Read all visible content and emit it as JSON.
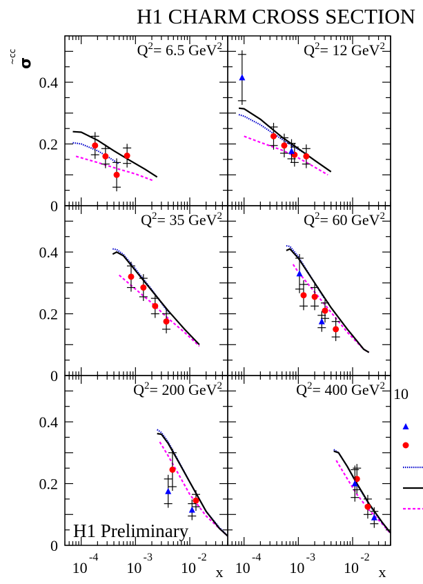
{
  "chart_data": {
    "type": "scatter",
    "title": "H1 CHARM CROSS SECTION",
    "ylabel": "σ̃ cc̄",
    "xlabel": "x",
    "xscale": "log",
    "xlim": [
      5e-05,
      0.05
    ],
    "ylim": [
      0,
      0.55
    ],
    "y_ticks": [
      "0",
      "0.2",
      "0.4"
    ],
    "x_ticks": [
      {
        "base": "10",
        "exp": "-4"
      },
      {
        "base": "10",
        "exp": "-3"
      },
      {
        "base": "10",
        "exp": "-2"
      }
    ],
    "annotation": "H1 Preliminary",
    "legend": {
      "placement": "right",
      "partial_label": "10",
      "entries": [
        {
          "name": "series-a",
          "marker": "triangle",
          "color": "#0000ff",
          "label": ""
        },
        {
          "name": "series-b",
          "marker": "circle",
          "color": "#ff0000",
          "label": ""
        },
        {
          "name": "model-dotted",
          "style": "dotted",
          "color": "#0000cc",
          "label": ""
        },
        {
          "name": "model-solid",
          "style": "solid",
          "color": "#000000",
          "label": ""
        },
        {
          "name": "model-dashed",
          "style": "dashed",
          "color": "#ff00ff",
          "label": ""
        }
      ]
    },
    "panels": [
      {
        "label": "Q",
        "q2": "6.5",
        "circles": [
          {
            "x": 0.00018,
            "y": 0.195,
            "err": 0.03
          },
          {
            "x": 0.00028,
            "y": 0.16,
            "err": 0.025
          },
          {
            "x": 0.00045,
            "y": 0.1,
            "err": 0.04
          },
          {
            "x": 0.0007,
            "y": 0.162,
            "err": 0.025
          }
        ],
        "triangles": [],
        "curves": {
          "solid": [
            [
              7e-05,
              0.24
            ],
            [
              0.0001,
              0.238
            ],
            [
              0.0002,
              0.212
            ],
            [
              0.0004,
              0.178
            ],
            [
              0.0008,
              0.146
            ],
            [
              0.0015,
              0.118
            ],
            [
              0.0025,
              0.093
            ]
          ],
          "dotted": [
            [
              7e-05,
              0.204
            ],
            [
              0.0001,
              0.2
            ],
            [
              0.0002,
              0.178
            ],
            [
              0.0003,
              0.16
            ],
            [
              0.0005,
              0.135
            ]
          ],
          "dashed": [
            [
              8e-05,
              0.16
            ],
            [
              0.0002,
              0.14
            ],
            [
              0.0005,
              0.118
            ],
            [
              0.001,
              0.103
            ],
            [
              0.0022,
              0.08
            ]
          ]
        }
      },
      {
        "label": "Q",
        "q2": "12",
        "circles": [
          {
            "x": 0.00035,
            "y": 0.225,
            "err": 0.03
          },
          {
            "x": 0.00055,
            "y": 0.195,
            "err": 0.025
          },
          {
            "x": 0.00085,
            "y": 0.165,
            "err": 0.025
          },
          {
            "x": 0.0014,
            "y": 0.16,
            "err": 0.025
          }
        ],
        "triangles": [
          {
            "x": 9.2e-05,
            "y": 0.415,
            "err": 0.075
          },
          {
            "x": 0.00075,
            "y": 0.177,
            "err": 0.025
          }
        ],
        "curves": {
          "solid": [
            [
              8e-05,
              0.316
            ],
            [
              0.0001,
              0.314
            ],
            [
              0.0002,
              0.28
            ],
            [
              0.0005,
              0.222
            ],
            [
              0.001,
              0.185
            ],
            [
              0.002,
              0.147
            ],
            [
              0.004,
              0.11
            ]
          ],
          "dotted": [
            [
              8e-05,
              0.295
            ],
            [
              0.0001,
              0.29
            ],
            [
              0.0002,
              0.262
            ],
            [
              0.0005,
              0.215
            ],
            [
              0.001,
              0.182
            ],
            [
              0.0015,
              0.165
            ]
          ],
          "dashed": [
            [
              0.0001,
              0.225
            ],
            [
              0.0002,
              0.205
            ],
            [
              0.0005,
              0.18
            ],
            [
              0.001,
              0.155
            ],
            [
              0.002,
              0.125
            ],
            [
              0.0035,
              0.1
            ]
          ]
        }
      },
      {
        "label": "Q",
        "q2": "35",
        "circles": [
          {
            "x": 0.00083,
            "y": 0.32,
            "err": 0.035
          },
          {
            "x": 0.0014,
            "y": 0.285,
            "err": 0.03
          },
          {
            "x": 0.0023,
            "y": 0.225,
            "err": 0.025
          },
          {
            "x": 0.0037,
            "y": 0.175,
            "err": 0.025
          }
        ],
        "triangles": [],
        "curves": {
          "solid": [
            [
              0.00038,
              0.393
            ],
            [
              0.00045,
              0.4
            ],
            [
              0.0006,
              0.388
            ],
            [
              0.001,
              0.34
            ],
            [
              0.002,
              0.275
            ],
            [
              0.004,
              0.21
            ],
            [
              0.008,
              0.15
            ],
            [
              0.015,
              0.1
            ]
          ],
          "dotted": [
            [
              0.00038,
              0.41
            ],
            [
              0.00045,
              0.408
            ],
            [
              0.0006,
              0.392
            ],
            [
              0.001,
              0.345
            ],
            [
              0.002,
              0.278
            ],
            [
              0.004,
              0.205
            ]
          ],
          "dashed": [
            [
              0.0005,
              0.325
            ],
            [
              0.001,
              0.28
            ],
            [
              0.002,
              0.235
            ],
            [
              0.004,
              0.185
            ],
            [
              0.008,
              0.14
            ],
            [
              0.015,
              0.095
            ]
          ]
        }
      },
      {
        "label": "Q",
        "q2": "60",
        "circles": [
          {
            "x": 0.00125,
            "y": 0.26,
            "err": 0.035
          },
          {
            "x": 0.002,
            "y": 0.255,
            "err": 0.03
          },
          {
            "x": 0.0031,
            "y": 0.21,
            "err": 0.025
          },
          {
            "x": 0.0049,
            "y": 0.15,
            "err": 0.025
          }
        ],
        "triangles": [
          {
            "x": 0.00105,
            "y": 0.33,
            "err": 0.05
          },
          {
            "x": 0.0027,
            "y": 0.175,
            "err": 0.02
          }
        ],
        "curves": {
          "solid": [
            [
              0.0006,
              0.405
            ],
            [
              0.0007,
              0.41
            ],
            [
              0.001,
              0.38
            ],
            [
              0.002,
              0.3
            ],
            [
              0.004,
              0.22
            ],
            [
              0.008,
              0.15
            ],
            [
              0.016,
              0.085
            ],
            [
              0.02,
              0.075
            ]
          ],
          "dotted": [
            [
              0.0006,
              0.42
            ],
            [
              0.0007,
              0.418
            ],
            [
              0.001,
              0.385
            ],
            [
              0.002,
              0.3
            ],
            [
              0.003,
              0.25
            ]
          ],
          "dashed": [
            [
              0.0008,
              0.36
            ],
            [
              0.001,
              0.335
            ],
            [
              0.002,
              0.27
            ],
            [
              0.004,
              0.205
            ],
            [
              0.008,
              0.14
            ],
            [
              0.016,
              0.085
            ],
            [
              0.02,
              0.075
            ]
          ]
        }
      },
      {
        "label": "Q",
        "q2": "200",
        "circles": [
          {
            "x": 0.0048,
            "y": 0.245,
            "err": 0.055
          },
          {
            "x": 0.013,
            "y": 0.145,
            "err": 0.02
          }
        ],
        "triangles": [
          {
            "x": 0.004,
            "y": 0.175,
            "err": 0.04
          },
          {
            "x": 0.011,
            "y": 0.115,
            "err": 0.02
          }
        ],
        "curves": {
          "solid": [
            [
              0.0025,
              0.362
            ],
            [
              0.003,
              0.36
            ],
            [
              0.004,
              0.33
            ],
            [
              0.006,
              0.275
            ],
            [
              0.01,
              0.205
            ],
            [
              0.02,
              0.11
            ],
            [
              0.035,
              0.055
            ],
            [
              0.05,
              0.03
            ]
          ],
          "dotted": [
            [
              0.0025,
              0.375
            ],
            [
              0.003,
              0.365
            ],
            [
              0.004,
              0.335
            ],
            [
              0.006,
              0.278
            ],
            [
              0.01,
              0.205
            ],
            [
              0.02,
              0.11
            ],
            [
              0.035,
              0.058
            ],
            [
              0.05,
              0.03
            ]
          ],
          "dashed": [
            [
              0.0028,
              0.335
            ],
            [
              0.004,
              0.29
            ],
            [
              0.006,
              0.235
            ],
            [
              0.01,
              0.165
            ],
            [
              0.02,
              0.095
            ],
            [
              0.035,
              0.055
            ],
            [
              0.05,
              0.03
            ]
          ]
        }
      },
      {
        "label": "Q",
        "q2": "400",
        "circles": [
          {
            "x": 0.012,
            "y": 0.215,
            "err": 0.035
          },
          {
            "x": 0.019,
            "y": 0.125,
            "err": 0.025
          }
        ],
        "triangles": [
          {
            "x": 0.011,
            "y": 0.2,
            "err": 0.045
          },
          {
            "x": 0.025,
            "y": 0.09,
            "err": 0.02
          }
        ],
        "curves": {
          "solid": [
            [
              0.0045,
              0.305
            ],
            [
              0.0055,
              0.3
            ],
            [
              0.008,
              0.255
            ],
            [
              0.012,
              0.2
            ],
            [
              0.02,
              0.135
            ],
            [
              0.035,
              0.075
            ],
            [
              0.05,
              0.04
            ]
          ],
          "dotted": [
            [
              0.0045,
              0.31
            ],
            [
              0.0055,
              0.3
            ],
            [
              0.008,
              0.255
            ],
            [
              0.012,
              0.198
            ],
            [
              0.02,
              0.133
            ],
            [
              0.035,
              0.073
            ],
            [
              0.05,
              0.04
            ]
          ],
          "dashed": [
            [
              0.005,
              0.275
            ],
            [
              0.008,
              0.215
            ],
            [
              0.012,
              0.165
            ],
            [
              0.02,
              0.115
            ],
            [
              0.035,
              0.07
            ],
            [
              0.05,
              0.038
            ]
          ]
        }
      }
    ]
  },
  "unit": "GeV",
  "sq": "2",
  "eq": "= "
}
